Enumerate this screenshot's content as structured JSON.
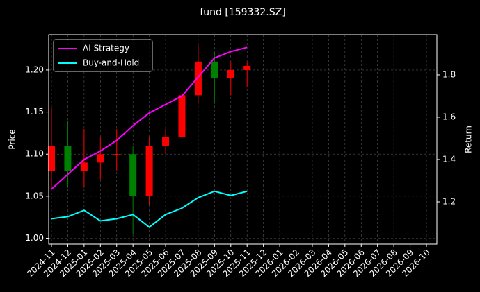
{
  "chart_data": {
    "type": "candlestick",
    "title": "fund [159332.SZ]",
    "ylabel": "Price",
    "y2label": "Return",
    "x": [
      "2024-11",
      "2024-12",
      "2025-01",
      "2025-02",
      "2025-03",
      "2025-04",
      "2025-05",
      "2025-06",
      "2025-07",
      "2025-08",
      "2025-09",
      "2025-10",
      "2025-11"
    ],
    "open": [
      1.08,
      1.11,
      1.08,
      1.09,
      1.1,
      1.1,
      1.05,
      1.11,
      1.12,
      1.17,
      1.21,
      1.19,
      1.2
    ],
    "high": [
      1.155,
      1.14,
      1.13,
      1.12,
      1.13,
      1.11,
      1.12,
      1.13,
      1.19,
      1.23,
      1.22,
      1.21,
      1.21
    ],
    "low": [
      1.06,
      1.06,
      1.06,
      1.07,
      1.08,
      1.005,
      1.04,
      1.1,
      1.11,
      1.16,
      1.16,
      1.17,
      1.18
    ],
    "close": [
      1.11,
      1.08,
      1.09,
      1.1,
      1.1,
      1.05,
      1.11,
      1.12,
      1.17,
      1.21,
      1.19,
      1.2,
      1.205
    ],
    "up_color": "#ff0000",
    "down_color": "#008000",
    "series": [
      {
        "name": "AI Strategy",
        "color": "#ff00ff",
        "axis": "y2",
        "values": [
          1.26,
          1.33,
          1.4,
          1.44,
          1.49,
          1.56,
          1.62,
          1.66,
          1.7,
          1.79,
          1.88,
          1.91,
          1.93
        ]
      },
      {
        "name": "Buy-and-Hold",
        "color": "#00ffff",
        "axis": "y2",
        "values": [
          1.12,
          1.13,
          1.16,
          1.11,
          1.12,
          1.14,
          1.08,
          1.14,
          1.17,
          1.22,
          1.25,
          1.23,
          1.25
        ]
      }
    ],
    "xticks": [
      "2024-11",
      "2024-12",
      "2025-01",
      "2025-02",
      "2025-03",
      "2025-04",
      "2025-05",
      "2025-06",
      "2025-07",
      "2025-08",
      "2025-09",
      "2025-10",
      "2025-11",
      "2025-12",
      "2026-01",
      "2026-02",
      "2026-03",
      "2026-04",
      "2026-05",
      "2026-06",
      "2026-07",
      "2026-08",
      "2026-09",
      "2026-10"
    ],
    "ylim": [
      0.993,
      1.242
    ],
    "yticks": [
      {
        "value": 1.0,
        "label": "1.00"
      },
      {
        "value": 1.05,
        "label": "1.05"
      },
      {
        "value": 1.1,
        "label": "1.10"
      },
      {
        "value": 1.15,
        "label": "1.15"
      },
      {
        "value": 1.2,
        "label": "1.20"
      }
    ],
    "y2lim": [
      1.0,
      1.99
    ],
    "y2ticks": [
      1.2,
      1.4,
      1.6,
      1.8
    ],
    "grid": true,
    "legend": "upper left"
  }
}
